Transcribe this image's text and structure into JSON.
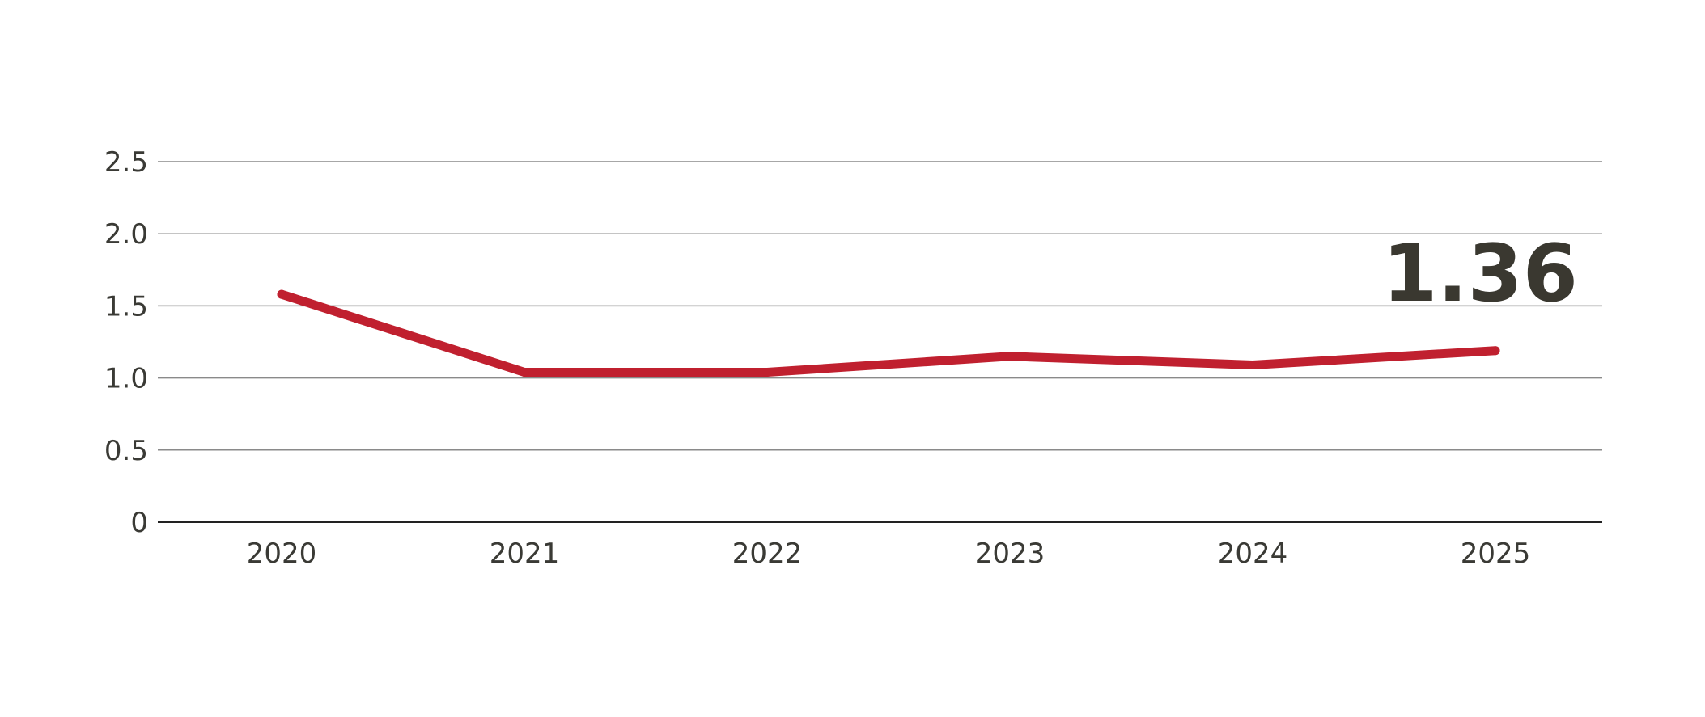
{
  "chart_data": {
    "type": "line",
    "x": [
      "2020",
      "2021",
      "2022",
      "2023",
      "2024",
      "2025"
    ],
    "series": [
      {
        "values": [
          1.58,
          1.04,
          1.04,
          1.15,
          1.09,
          1.19
        ]
      }
    ],
    "y_ticks": [
      "0",
      "0.5",
      "1.0",
      "1.5",
      "2.0",
      "2.5"
    ],
    "ylim": [
      0,
      2.5
    ],
    "grid": true,
    "line_color": "#c0202f",
    "callout": "1.36"
  }
}
